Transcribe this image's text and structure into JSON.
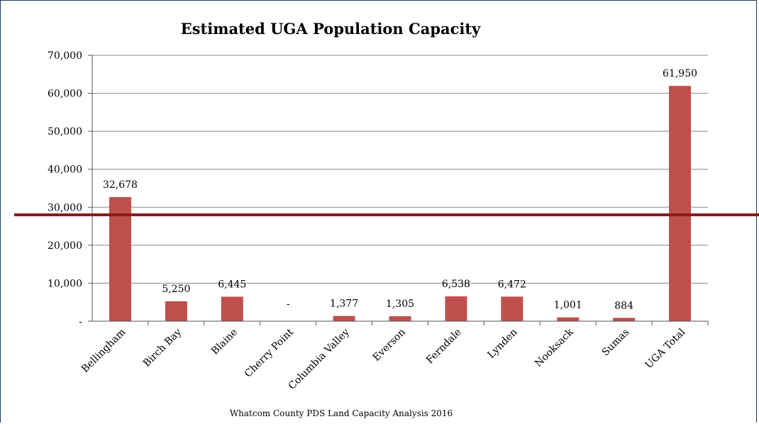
{
  "chart_data": {
    "type": "bar",
    "title": "Estimated UGA Population Capacity",
    "source_note": "Whatcom County PDS Land Capacity Analysis 2016",
    "categories": [
      "Bellingham",
      "Birch Bay",
      "Blaine",
      "Cherry Point",
      "Columbia Valley",
      "Everson",
      "Ferndale",
      "Lynden",
      "Nooksack",
      "Sumas",
      "UGA Total"
    ],
    "values": [
      32678,
      5250,
      6445,
      0,
      1377,
      1305,
      6538,
      6472,
      1001,
      884,
      61950
    ],
    "data_labels": [
      "32,678",
      "5,250",
      "6,445",
      "-",
      "1,377",
      "1,305",
      "6,538",
      "6,472",
      "1,001",
      "884",
      "61,950"
    ],
    "ylim": [
      0,
      70000
    ],
    "yticks": [
      0,
      10000,
      20000,
      30000,
      40000,
      50000,
      60000,
      70000
    ],
    "ytick_labels": [
      "-",
      "10,000",
      "20,000",
      "30,000",
      "40,000",
      "50,000",
      "60,000",
      "70,000"
    ],
    "reference_line": 28000,
    "grid": true,
    "legend": "none",
    "colors": {
      "bar": "#c0504d",
      "reference_line": "#8b1a1a",
      "grid": "#888888",
      "frame": "#1f3b57"
    }
  }
}
